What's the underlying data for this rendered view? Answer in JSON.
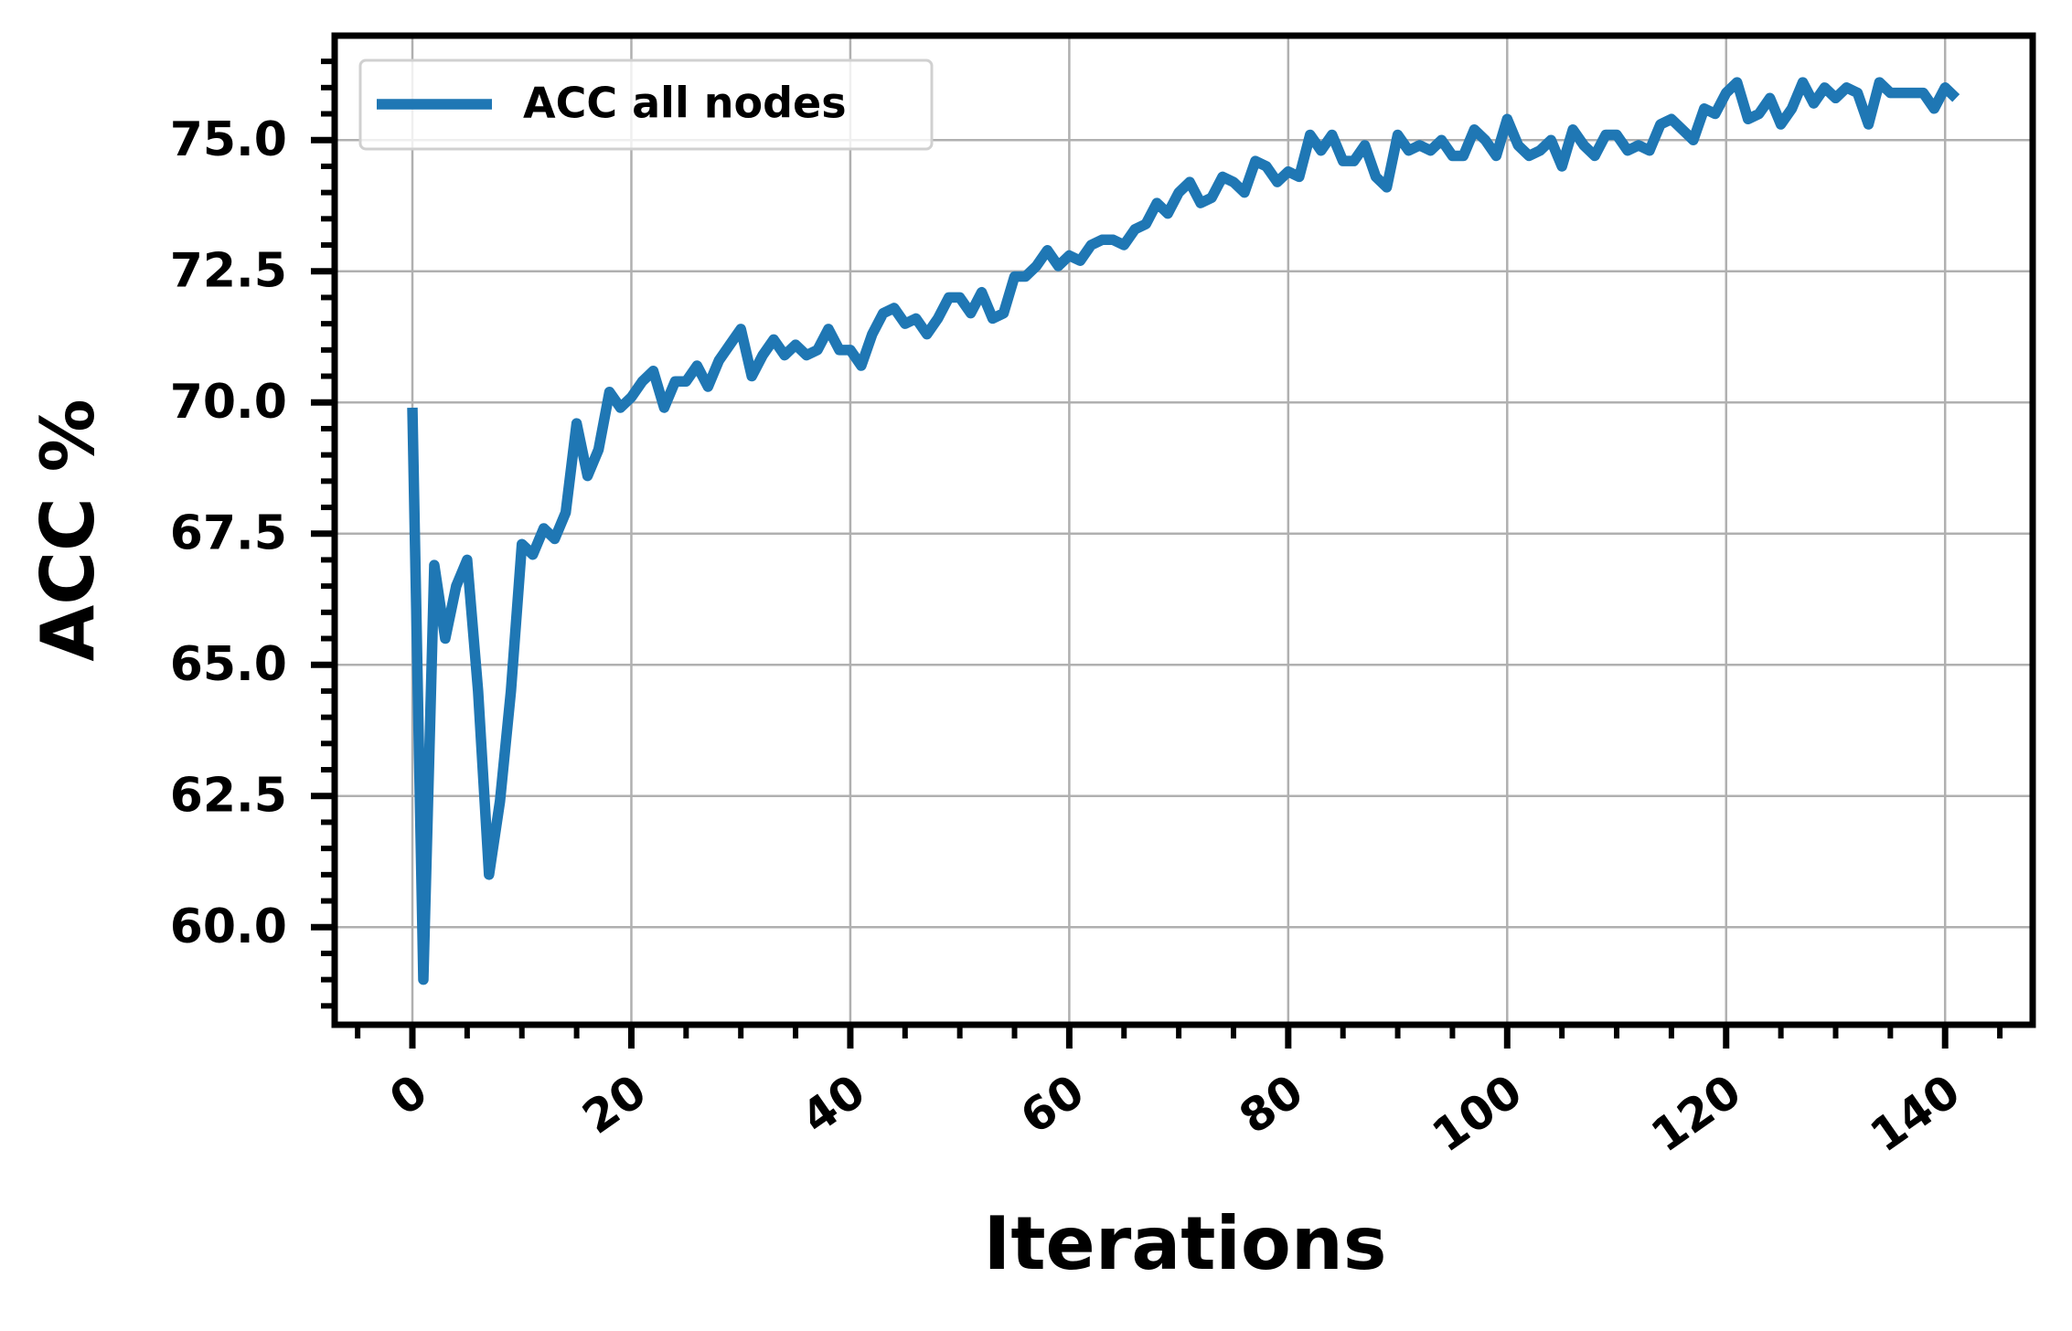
{
  "chart_data": {
    "type": "line",
    "xlabel": "Iterations",
    "ylabel": "ACC %",
    "x": [
      0,
      1,
      2,
      3,
      4,
      5,
      6,
      7,
      8,
      9,
      10,
      11,
      12,
      13,
      14,
      15,
      16,
      17,
      18,
      19,
      20,
      21,
      22,
      23,
      24,
      25,
      26,
      27,
      28,
      29,
      30,
      31,
      32,
      33,
      34,
      35,
      36,
      37,
      38,
      39,
      40,
      41,
      42,
      43,
      44,
      45,
      46,
      47,
      48,
      49,
      50,
      51,
      52,
      53,
      54,
      55,
      56,
      57,
      58,
      59,
      60,
      61,
      62,
      63,
      64,
      65,
      66,
      67,
      68,
      69,
      70,
      71,
      72,
      73,
      74,
      75,
      76,
      77,
      78,
      79,
      80,
      81,
      82,
      83,
      84,
      85,
      86,
      87,
      88,
      89,
      90,
      91,
      92,
      93,
      94,
      95,
      96,
      97,
      98,
      99,
      100,
      101,
      102,
      103,
      104,
      105,
      106,
      107,
      108,
      109,
      110,
      111,
      112,
      113,
      114,
      115,
      116,
      117,
      118,
      119,
      120,
      121,
      122,
      123,
      124,
      125,
      126,
      127,
      128,
      129,
      130,
      131,
      132,
      133,
      134,
      135,
      136,
      137,
      138,
      139,
      140,
      141
    ],
    "series": [
      {
        "name": "ACC all nodes",
        "color": "#1f77b4",
        "values": [
          69.9,
          59.0,
          66.9,
          65.5,
          66.5,
          67.0,
          64.5,
          61.0,
          62.4,
          64.5,
          67.3,
          67.1,
          67.6,
          67.4,
          67.9,
          69.6,
          68.6,
          69.1,
          70.2,
          69.9,
          70.1,
          70.4,
          70.6,
          69.9,
          70.4,
          70.4,
          70.7,
          70.3,
          70.8,
          71.1,
          71.4,
          70.5,
          70.9,
          71.2,
          70.9,
          71.1,
          70.9,
          71.0,
          71.4,
          71.0,
          71.0,
          70.7,
          71.3,
          71.7,
          71.8,
          71.5,
          71.6,
          71.3,
          71.6,
          72.0,
          72.0,
          71.7,
          72.1,
          71.6,
          71.7,
          72.4,
          72.4,
          72.6,
          72.9,
          72.6,
          72.8,
          72.7,
          73.0,
          73.1,
          73.1,
          73.0,
          73.3,
          73.4,
          73.8,
          73.6,
          74.0,
          74.2,
          73.8,
          73.9,
          74.3,
          74.2,
          74.0,
          74.6,
          74.5,
          74.2,
          74.4,
          74.3,
          75.1,
          74.8,
          75.1,
          74.6,
          74.6,
          74.9,
          74.3,
          74.1,
          75.1,
          74.8,
          74.9,
          74.8,
          75.0,
          74.7,
          74.7,
          75.2,
          75.0,
          74.7,
          75.4,
          74.9,
          74.7,
          74.8,
          75.0,
          74.5,
          75.2,
          74.9,
          74.7,
          75.1,
          75.1,
          74.8,
          74.9,
          74.8,
          75.3,
          75.4,
          75.2,
          75.0,
          75.6,
          75.5,
          75.9,
          76.1,
          75.4,
          75.5,
          75.8,
          75.3,
          75.6,
          76.1,
          75.7,
          76.0,
          75.8,
          76.0,
          75.9,
          75.3,
          76.1,
          75.9,
          75.9,
          75.9,
          75.9,
          75.6,
          76.0,
          75.8
        ]
      }
    ],
    "xlim": [
      -7.1,
      148.0
    ],
    "ylim": [
      58.14,
      76.99
    ],
    "xticks": [
      0,
      20,
      40,
      60,
      80,
      100,
      120,
      140
    ],
    "yticks": [
      {
        "value": 60,
        "label": "60.0"
      },
      {
        "value": 62.5,
        "label": "62.5"
      },
      {
        "value": 65,
        "label": "65.0"
      },
      {
        "value": 67.5,
        "label": "67.5"
      },
      {
        "value": 70,
        "label": "70.0"
      },
      {
        "value": 72.5,
        "label": "72.5"
      },
      {
        "value": 75,
        "label": "75.0"
      }
    ],
    "xminorticks": [
      -5,
      5,
      10,
      15,
      25,
      30,
      35,
      45,
      50,
      55,
      65,
      70,
      75,
      85,
      90,
      95,
      105,
      110,
      115,
      125,
      130,
      135,
      145
    ],
    "yminorticks": [
      58.5,
      59,
      59.5,
      60.5,
      61,
      61.5,
      62,
      63,
      63.5,
      64,
      64.5,
      65.5,
      66,
      66.5,
      67,
      68,
      68.5,
      69,
      69.5,
      70.5,
      71,
      71.5,
      72,
      73,
      73.5,
      74,
      74.5,
      75.5,
      76,
      76.5
    ],
    "grid": true,
    "legend": "upper left"
  }
}
